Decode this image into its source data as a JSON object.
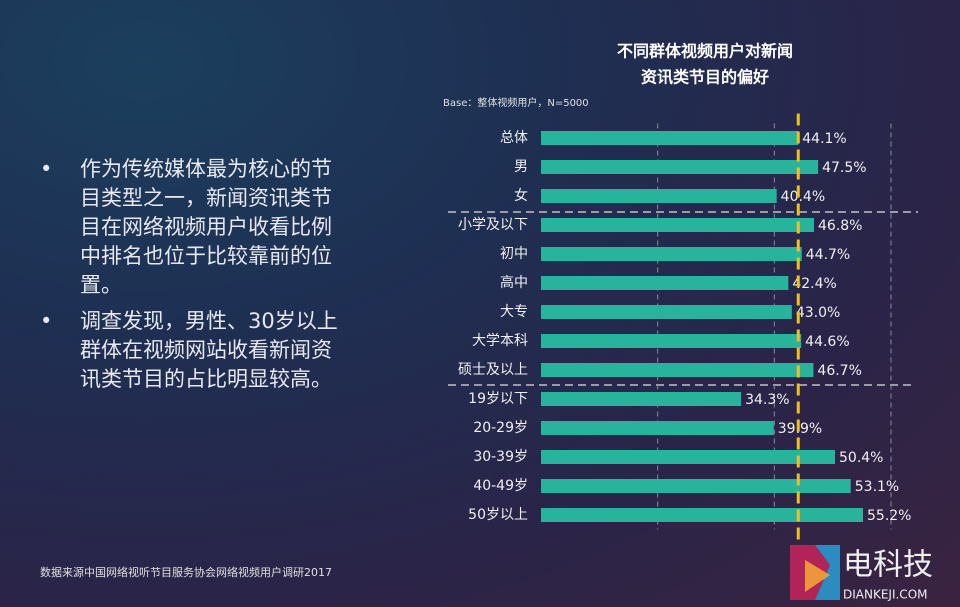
{
  "chart_data": {
    "type": "bar",
    "orientation": "horizontal",
    "title": [
      "不同群体视频用户对新闻",
      "资讯类节目的偏好"
    ],
    "subtitle": "Base：整体视频用户，N=5000",
    "categories": [
      "总体",
      "男",
      "女",
      "小学及以下",
      "初中",
      "高中",
      "大专",
      "大学本科",
      "硕士及以上",
      "19岁以下",
      "20-29岁",
      "30-39岁",
      "40-49岁",
      "50岁以上"
    ],
    "series": [
      {
        "color": "#27b39c",
        "values": [
          44.1,
          47.5,
          40.4,
          46.8,
          44.7,
          42.4,
          43.0,
          44.6,
          46.7,
          34.3,
          39.9,
          50.4,
          53.1,
          55.2
        ],
        "value_labels": [
          "44.1%",
          "47.5%",
          "40.4%",
          "46.8%",
          "44.7%",
          "42.4%",
          "43.0%",
          "44.6%",
          "46.7%",
          "34.3%",
          "39.9%",
          "50.4%",
          "53.1%",
          "55.2%"
        ]
      }
    ],
    "xlim": [
      0,
      60
    ],
    "xticks": [
      20,
      40,
      60
    ],
    "show_tick_labels": false,
    "grid": true,
    "reference_line": {
      "value": 44.1,
      "color": "#f2c01e"
    }
  },
  "bullets": [
    [
      "作为传统媒体最为核心的节",
      "目类型之一，新闻资讯类节",
      "目在网络视频用户收看比例",
      "中排名也位于比较靠前的位",
      "置。"
    ],
    [
      "调查发现，男性、30岁以上",
      "群体在视频网站收看新闻资",
      "讯类节目的占比明显较高。"
    ]
  ],
  "bullet_symbol": "•",
  "source": "数据来源中国网络视听节目服务协会网络视频用户调研2017",
  "watermark": {
    "name": "电科技",
    "url": "DIANKEJI.COM"
  }
}
